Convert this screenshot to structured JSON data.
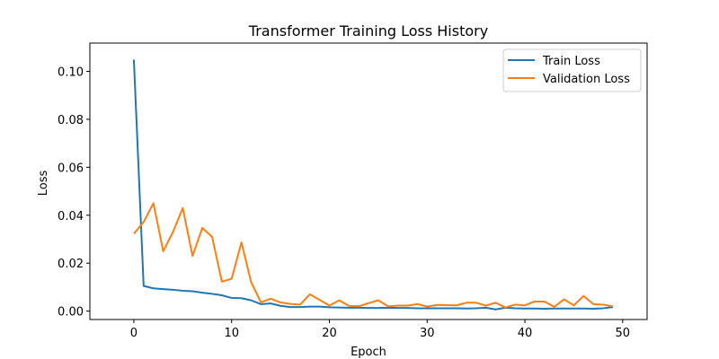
{
  "chart_data": {
    "type": "line",
    "title": "Transformer Training Loss History",
    "xlabel": "Epoch",
    "ylabel": "Loss",
    "xlim": [
      -4.5,
      52.5
    ],
    "ylim": [
      -0.0035,
      0.1118
    ],
    "xticks": [
      0,
      10,
      20,
      30,
      40,
      50
    ],
    "xtick_labels": [
      "0",
      "10",
      "20",
      "30",
      "40",
      "50"
    ],
    "yticks": [
      0.0,
      0.02,
      0.04,
      0.06,
      0.08,
      0.1
    ],
    "ytick_labels": [
      "0.00",
      "0.02",
      "0.04",
      "0.06",
      "0.08",
      "0.10"
    ],
    "grid": false,
    "legend_position": "top-right",
    "x": [
      0,
      1,
      2,
      3,
      4,
      5,
      6,
      7,
      8,
      9,
      10,
      11,
      12,
      13,
      14,
      15,
      16,
      17,
      18,
      19,
      20,
      21,
      22,
      23,
      24,
      25,
      26,
      27,
      28,
      29,
      30,
      31,
      32,
      33,
      34,
      35,
      36,
      37,
      38,
      39,
      40,
      41,
      42,
      43,
      44,
      45,
      46,
      47,
      48,
      49
    ],
    "series": [
      {
        "name": "Train Loss",
        "color": "#1f77b4",
        "values": [
          0.1049,
          0.0105,
          0.0095,
          0.0092,
          0.0089,
          0.0085,
          0.0083,
          0.0077,
          0.0072,
          0.0066,
          0.0055,
          0.0054,
          0.0045,
          0.0029,
          0.0032,
          0.0022,
          0.0017,
          0.0017,
          0.0019,
          0.0019,
          0.0016,
          0.0015,
          0.0014,
          0.0014,
          0.0013,
          0.0013,
          0.0014,
          0.0013,
          0.0013,
          0.0012,
          0.0012,
          0.0012,
          0.0012,
          0.0012,
          0.0011,
          0.0012,
          0.0014,
          0.0007,
          0.0014,
          0.0012,
          0.0011,
          0.0011,
          0.001,
          0.0011,
          0.0011,
          0.0011,
          0.0011,
          0.001,
          0.0012,
          0.0017
        ]
      },
      {
        "name": "Validation Loss",
        "color": "#ff7f0e",
        "values": [
          0.0323,
          0.0372,
          0.045,
          0.025,
          0.033,
          0.043,
          0.023,
          0.0347,
          0.031,
          0.0123,
          0.0135,
          0.0287,
          0.012,
          0.0037,
          0.0052,
          0.0036,
          0.003,
          0.0027,
          0.007,
          0.0047,
          0.0023,
          0.0045,
          0.0022,
          0.002,
          0.0033,
          0.0045,
          0.002,
          0.0023,
          0.0023,
          0.0029,
          0.0019,
          0.0026,
          0.0025,
          0.0024,
          0.0035,
          0.0035,
          0.0023,
          0.0035,
          0.0015,
          0.0027,
          0.0024,
          0.004,
          0.004,
          0.0018,
          0.0049,
          0.0024,
          0.0063,
          0.0029,
          0.0027,
          0.002
        ]
      }
    ]
  }
}
